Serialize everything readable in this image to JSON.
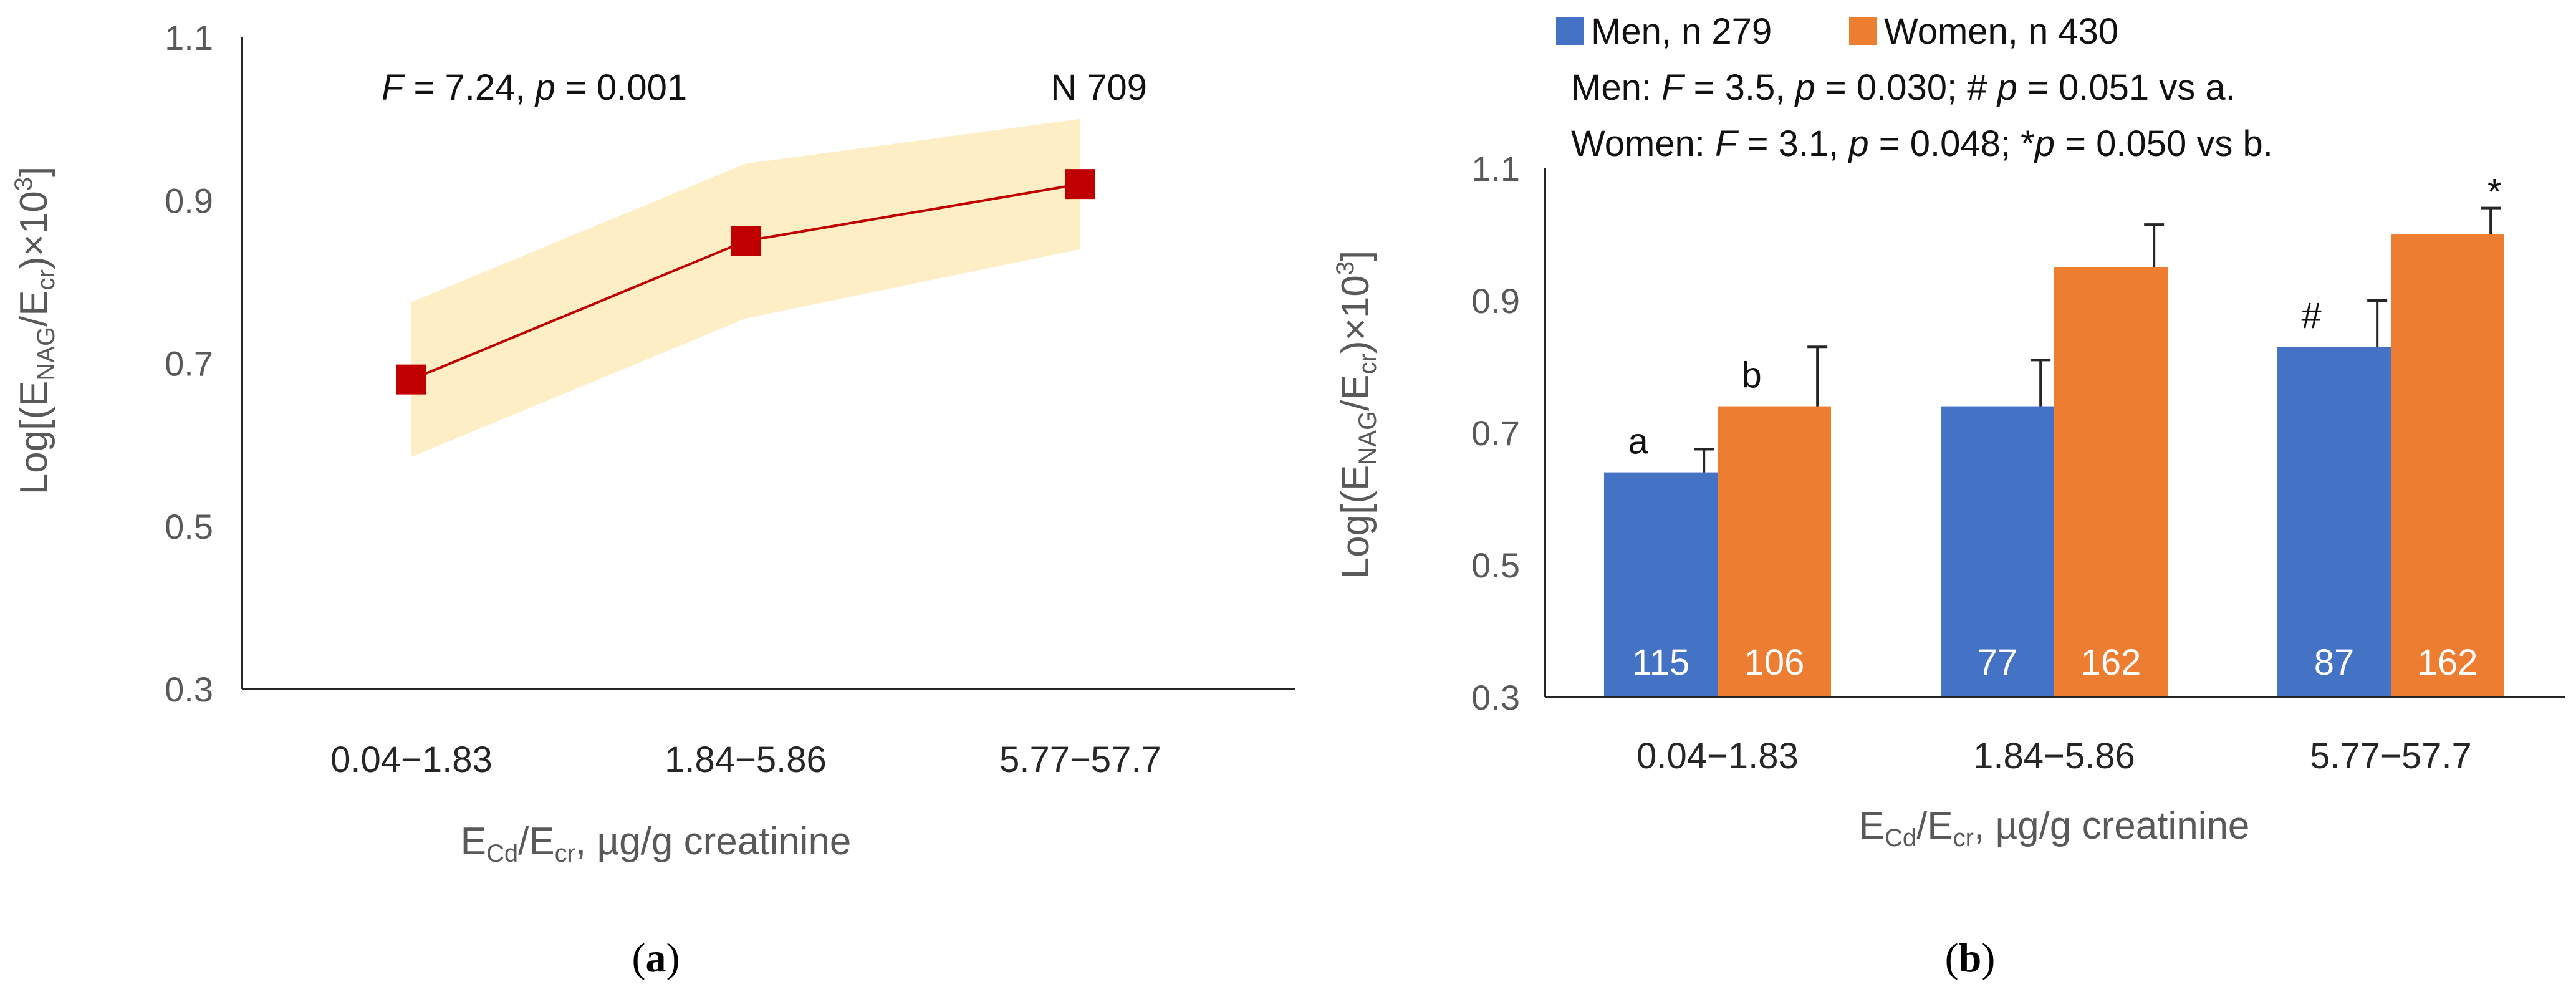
{
  "chart_data": [
    {
      "type": "line",
      "panel_label": "a",
      "categories": [
        "0.04−1.83",
        "1.84−5.86",
        "5.77−57.7"
      ],
      "series": [
        {
          "name": "N 709",
          "values": [
            0.68,
            0.85,
            0.92
          ]
        }
      ],
      "band_upper": [
        0.775,
        0.945,
        1.0
      ],
      "band_lower": [
        0.585,
        0.755,
        0.84
      ],
      "ylim": [
        0.3,
        1.1
      ],
      "yticks": [
        1.1,
        0.9,
        0.7,
        0.5,
        0.3
      ],
      "yticks_text": [
        "1.1",
        "0.9",
        "0.7",
        "0.5",
        "0.3"
      ],
      "ylabel": {
        "base": "Log[(E",
        "sub1": "NAG",
        "mid": "/E",
        "sub2": "cr",
        "end": ")×10",
        "sup": "3",
        "close": "]"
      },
      "xlabel": {
        "e1": "E",
        "sub1": "Cd",
        "slash": "/E",
        "sub2": "cr",
        "rest": ", µg/g creatinine"
      },
      "annotation": {
        "F": "F",
        "stat1": " = 7.24, ",
        "p": "p",
        "stat2": " = 0.001"
      },
      "n_label": "N 709",
      "colors": {
        "line": "#c00000",
        "marker": "#c00000",
        "band": "#fdeec6"
      }
    },
    {
      "type": "bar",
      "panel_label": "b",
      "categories": [
        "0.04−1.83",
        "1.84−5.86",
        "5.77−57.7"
      ],
      "series": [
        {
          "name": "Men, n 279",
          "values": [
            0.64,
            0.74,
            0.83
          ],
          "errors": [
            0.035,
            0.07,
            0.07
          ],
          "n": [
            "115",
            "77",
            "87"
          ],
          "marks": [
            "a",
            "",
            "#"
          ],
          "color": "#4472c4"
        },
        {
          "name": "Women, n 430",
          "values": [
            0.74,
            0.95,
            1.0
          ],
          "errors": [
            0.09,
            0.065,
            0.04
          ],
          "n": [
            "106",
            "162",
            "162"
          ],
          "marks": [
            "b",
            "",
            "*"
          ],
          "color": "#ed7d31"
        }
      ],
      "ylim": [
        0.3,
        1.1
      ],
      "yticks": [
        1.1,
        0.9,
        0.7,
        0.5,
        0.3
      ],
      "yticks_text": [
        "1.1",
        "0.9",
        "0.7",
        "0.5",
        "0.3"
      ],
      "ylabel": {
        "base": "Log[(E",
        "sub1": "NAG",
        "mid": "/E",
        "sub2": "cr",
        "end": ")×10",
        "sup": "3",
        "close": "]"
      },
      "xlabel": {
        "e1": "E",
        "sub1": "Cd",
        "slash": "/E",
        "sub2": "cr",
        "rest": ", µg/g creatinine"
      },
      "stats_men": {
        "lead": "Men:  ",
        "F": "F",
        "a": " = 3.5, ",
        "p1": "p",
        "b": " = 0.030; # ",
        "p2": "p",
        "c": " = 0.051 vs a."
      },
      "stats_women": {
        "lead": "Women: ",
        "F": "F",
        "a": " = 3.1, ",
        "p1": "p",
        "b": " = 0.048; *",
        "p2": "p",
        "c": " = 0.050 vs b."
      }
    }
  ]
}
